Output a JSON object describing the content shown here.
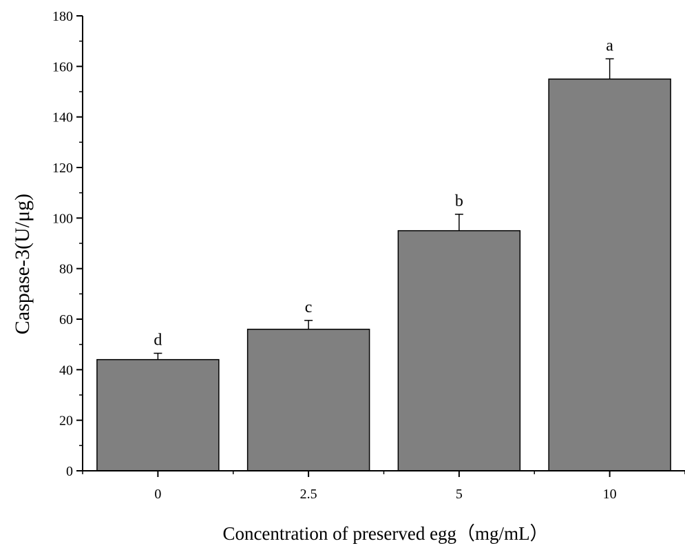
{
  "chart_data": {
    "type": "bar",
    "categories": [
      "0",
      "2.5",
      "5",
      "10"
    ],
    "values": [
      44,
      56,
      95,
      155
    ],
    "errors": [
      2.5,
      3.5,
      6.5,
      8
    ],
    "significance_letters": [
      "d",
      "c",
      "b",
      "a"
    ],
    "xlabel": "Concentration of preserved egg（mg/mL）",
    "ylabel": "Caspase-3(U/μg)",
    "ylim": [
      0,
      180
    ],
    "yticks": [
      0,
      20,
      40,
      60,
      80,
      100,
      120,
      140,
      160,
      180
    ],
    "grid": false,
    "legend": "none",
    "colors": {
      "bar": "#808080",
      "bar_edge": "#000000",
      "axis": "#000000"
    }
  }
}
